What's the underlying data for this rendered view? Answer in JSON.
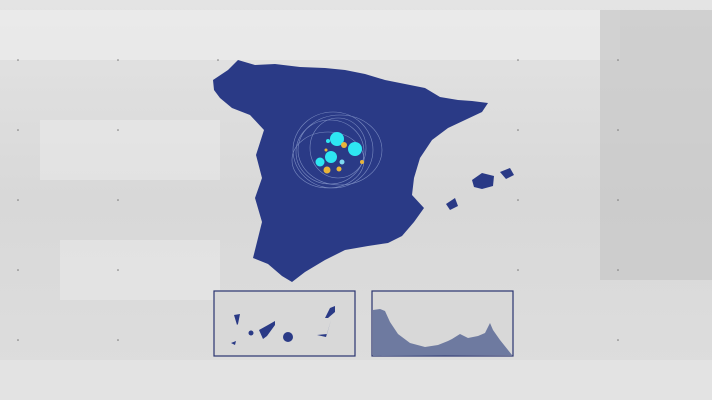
{
  "colors": {
    "land": "#2a3a86",
    "land_light": "#3a4c9c",
    "inset_frame": "#2a3470",
    "bubble_cyan": "#2ee6f2",
    "bubble_yellow": "#e8b43a",
    "background": "#dcdcdc"
  },
  "insets": [
    {
      "name": "canary-islands"
    },
    {
      "name": "ceuta-melilla-coast"
    }
  ]
}
